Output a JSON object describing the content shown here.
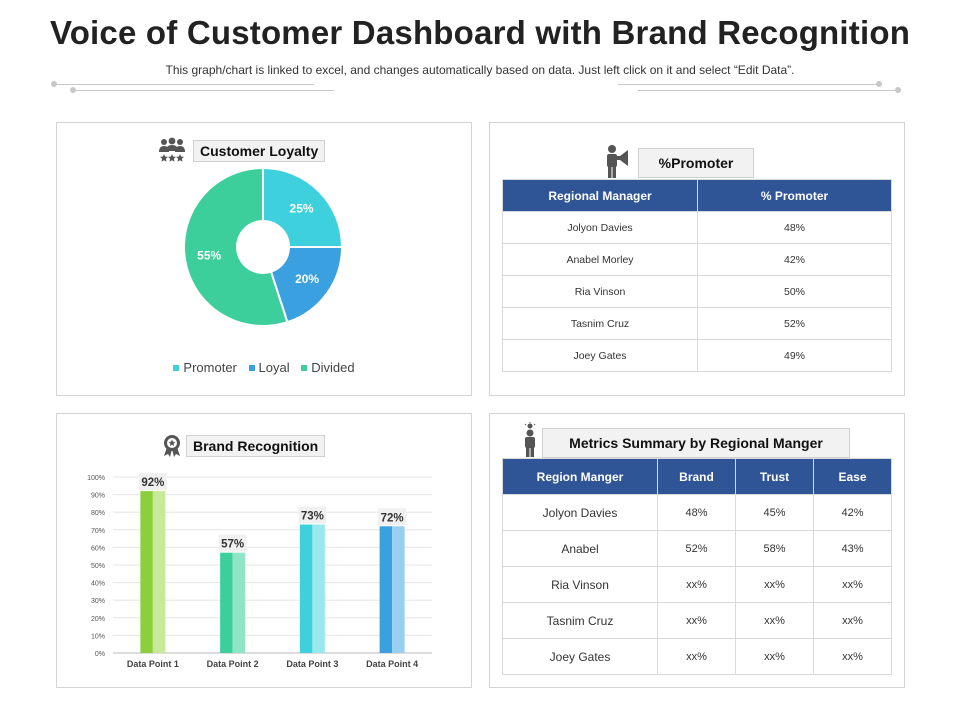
{
  "header": {
    "title": "Voice of Customer Dashboard with Brand Recognition",
    "subtitle": "This graph/chart is linked to excel, and changes automatically based on data. Just left click on it and select “Edit Data”."
  },
  "loyalty": {
    "heading": "Customer Loyalty",
    "icon": "people-stars-icon"
  },
  "promoter": {
    "heading": "%Promoter",
    "icon": "megaphone-person-icon",
    "columns": [
      "Regional Manager",
      "% Promoter"
    ],
    "rows": [
      [
        "Jolyon Davies",
        "48%"
      ],
      [
        "Anabel Morley",
        "42%"
      ],
      [
        "Ria Vinson",
        "50%"
      ],
      [
        "Tasnim Cruz",
        "52%"
      ],
      [
        "Joey Gates",
        "49%"
      ]
    ]
  },
  "brand": {
    "heading": "Brand Recognition",
    "icon": "award-badge-icon"
  },
  "metrics": {
    "heading": "Metrics Summary by Regional Manger",
    "icon": "idea-person-icon",
    "columns": [
      "Region Manger",
      "Brand",
      "Trust",
      "Ease"
    ],
    "rows": [
      [
        "Jolyon Davies",
        "48%",
        "45%",
        "42%"
      ],
      [
        "Anabel",
        "52%",
        "58%",
        "43%"
      ],
      [
        "Ria Vinson",
        "xx%",
        "xx%",
        "xx%"
      ],
      [
        "Tasnim Cruz",
        "xx%",
        "xx%",
        "xx%"
      ],
      [
        "Joey Gates",
        "xx%",
        "xx%",
        "xx%"
      ]
    ]
  },
  "colors": {
    "header_blue": "#2f5597",
    "promoter": "#3fd0de",
    "loyal": "#3aa0e0",
    "divided": "#3ccf9c"
  },
  "chart_data": [
    {
      "type": "pie",
      "title": "Customer Loyalty",
      "categories": [
        "Promoter",
        "Loyal",
        "Divided"
      ],
      "values": [
        25,
        20,
        55
      ],
      "labels": [
        "25%",
        "20%",
        "55%"
      ],
      "legend": "bottom"
    },
    {
      "type": "bar",
      "title": "Brand Recognition",
      "categories": [
        "Data Point 1",
        "Data Point 2",
        "Data Point 3",
        "Data Point 4"
      ],
      "values": [
        92,
        57,
        73,
        72
      ],
      "labels": [
        "92%",
        "57%",
        "73%",
        "72%"
      ],
      "ylim": [
        0,
        100
      ],
      "yticks": [
        "0%",
        "10%",
        "20%",
        "30%",
        "40%",
        "50%",
        "60%",
        "70%",
        "80%",
        "90%",
        "100%"
      ],
      "grid": true,
      "colors": [
        [
          "#8ccf3c",
          "#c8e89a"
        ],
        [
          "#3ccf9c",
          "#8fe5c6"
        ],
        [
          "#3fd0de",
          "#98e8ee"
        ],
        [
          "#3aa0e0",
          "#98ceef"
        ]
      ]
    }
  ]
}
